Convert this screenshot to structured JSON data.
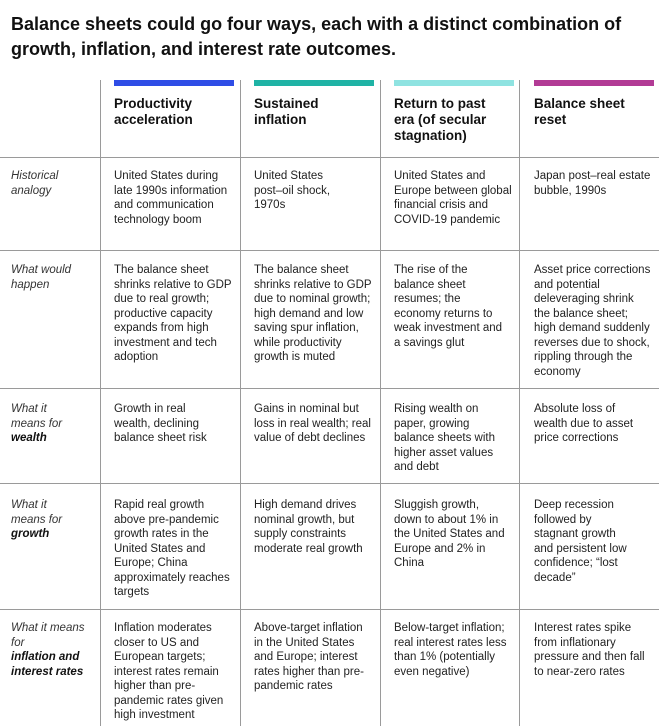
{
  "title": "Balance sheets could go four ways, each with a distinct combination of growth, inflation, and interest rate outcomes.",
  "columns": [
    {
      "label": "Productivity acceleration",
      "color": "#2f4de6"
    },
    {
      "label": "Sustained inflation",
      "color": "#1fb3a5"
    },
    {
      "label": "Return to past era (of secular stagnation)",
      "color": "#8fe3e1"
    },
    {
      "label": "Balance sheet reset",
      "color": "#b23b95"
    }
  ],
  "rows": [
    {
      "label_prefix": "Historical analogy",
      "label_bold": "",
      "cells": [
        "United States during late 1990s information and communication technology boom",
        "United States post–oil shock, 1970s",
        "United States and Europe between global financial crisis and COVID-19 pandemic",
        "Japan post–real estate bubble, 1990s"
      ]
    },
    {
      "label_prefix": "What would happen",
      "label_bold": "",
      "cells": [
        "The balance sheet shrinks relative to GDP due to real growth; productive capacity expands from high investment and tech adoption",
        "The balance sheet shrinks relative to GDP due to nominal growth; high demand and low saving spur inflation, while productivity growth is muted",
        "The rise of the balance sheet resumes; the economy returns to weak investment and a savings glut",
        "Asset price corrections and potential deleveraging shrink the balance sheet; high demand suddenly reverses due to shock, rippling through the economy"
      ]
    },
    {
      "label_prefix": "What it means for",
      "label_bold": "wealth",
      "cells": [
        "Growth in real wealth, declining balance sheet risk",
        "Gains in nominal but loss in real wealth; real value of debt declines",
        "Rising wealth on paper, growing balance sheets with higher asset values and debt",
        "Absolute loss of wealth due to asset price corrections"
      ]
    },
    {
      "label_prefix": "What it means for",
      "label_bold": "growth",
      "cells": [
        "Rapid real growth above pre-pandemic growth rates in the United States and Europe; China approximately reaches targets",
        "High demand drives nominal growth, but supply constraints moderate real growth",
        "Sluggish growth, down to about 1% in the United States and Europe and 2% in China",
        "Deep recession followed by stagnant growth and persistent low confidence; “lost decade”"
      ]
    },
    {
      "label_prefix": "What it means for",
      "label_bold": "inflation and interest rates",
      "cells": [
        "Inflation moderates closer to US and European targets; interest rates remain higher than pre-pandemic rates given high investment",
        "Above-target inflation in the United States and Europe; interest rates higher than pre-pandemic rates",
        "Below-target inflation; real interest rates less than 1% (potentially even negative)",
        "Interest rates spike from inflationary pressure and then fall to near-zero rates"
      ]
    }
  ]
}
